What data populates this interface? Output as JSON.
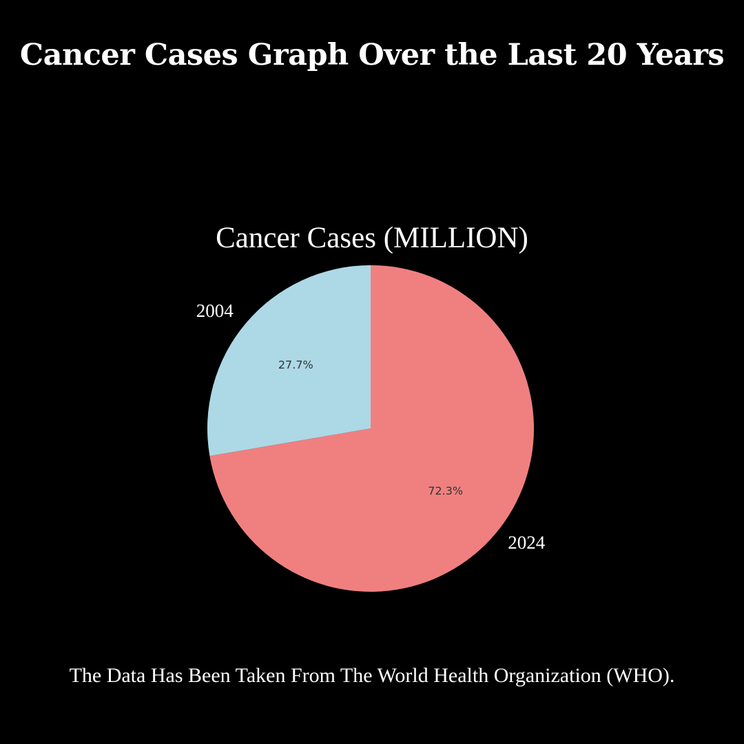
{
  "header": {
    "title": "Cancer Cases Graph Over the Last 20 Years"
  },
  "footer": {
    "source": "The Data Has Been Taken From The World Health Organization (WHO)."
  },
  "chart_data": {
    "type": "pie",
    "title": "Cancer Cases (MILLION)",
    "categories": [
      "2004",
      "2024"
    ],
    "values": [
      27.7,
      72.3
    ],
    "value_labels": [
      "27.7%",
      "72.3%"
    ],
    "colors": [
      "#ADD8E6",
      "#F08080"
    ],
    "start_angle_deg": 90,
    "direction": "counterclockwise",
    "legend": "none"
  }
}
